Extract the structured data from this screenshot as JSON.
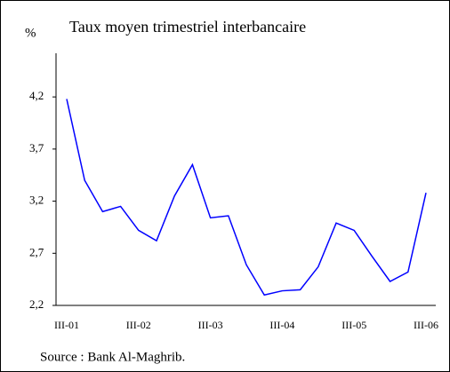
{
  "chart_data": {
    "type": "line",
    "title": "Taux moyen trimestriel interbancaire",
    "y_label": "%",
    "source": "Source : Bank Al-Maghrib.",
    "categories": [
      "III-01",
      null,
      null,
      null,
      "III-02",
      null,
      null,
      null,
      "III-03",
      null,
      null,
      null,
      "III-04",
      null,
      null,
      null,
      "III-05",
      null,
      null,
      null,
      "III-06"
    ],
    "series": [
      {
        "name": "Taux moyen trimestriel interbancaire",
        "color": "#0000ff",
        "values": [
          4.18,
          3.4,
          3.1,
          3.15,
          2.92,
          2.82,
          3.25,
          3.55,
          3.04,
          3.06,
          2.59,
          2.3,
          2.34,
          2.35,
          2.57,
          2.99,
          2.92,
          2.67,
          2.43,
          2.52,
          3.28
        ]
      }
    ],
    "ylim": [
      2.2,
      4.6
    ],
    "yticks": [
      {
        "value": 2.2,
        "label": "2,2"
      },
      {
        "value": 2.7,
        "label": "2,7"
      },
      {
        "value": 3.2,
        "label": "3,2"
      },
      {
        "value": 3.7,
        "label": "3,7"
      },
      {
        "value": 4.2,
        "label": "4,2"
      }
    ]
  }
}
